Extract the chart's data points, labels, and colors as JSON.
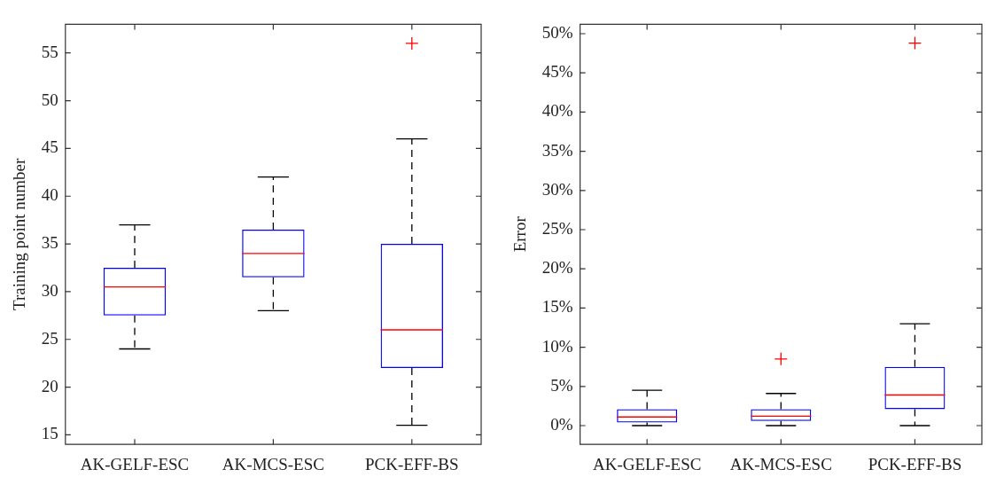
{
  "chart_data": [
    {
      "type": "box",
      "ylabel": "Training point number",
      "categories": [
        "AK-GELF-ESC",
        "AK-MCS-ESC",
        "PCK-EFF-BS"
      ],
      "ylim": [
        14,
        58
      ],
      "yticks": [
        15,
        20,
        25,
        30,
        35,
        40,
        45,
        50,
        55
      ],
      "grid": false,
      "marker": "cross",
      "series": [
        {
          "color": "#0000ff",
          "boxes": [
            {
              "low": 24,
              "q1": 27.5,
              "median": 30.5,
              "q3": 32.5,
              "high": 37
            },
            {
              "low": 28,
              "q1": 31.5,
              "median": 34,
              "q3": 36.5,
              "high": 42
            },
            {
              "low": 16,
              "q1": 22,
              "median": 26,
              "q3": 35,
              "high": 46,
              "outliers": [
                56
              ]
            }
          ]
        }
      ]
    },
    {
      "type": "box",
      "ylabel": "Error",
      "categories": [
        "AK-GELF-ESC",
        "AK-MCS-ESC",
        "PCK-EFF-BS"
      ],
      "ylim": [
        -2.4,
        51.2
      ],
      "yticks": [
        {
          "value": 0,
          "label": "0%"
        },
        {
          "value": 5,
          "label": "5%"
        },
        {
          "value": 10,
          "label": "10%"
        },
        {
          "value": 15,
          "label": "15%"
        },
        {
          "value": 20,
          "label": "20%"
        },
        {
          "value": 25,
          "label": "25%"
        },
        {
          "value": 30,
          "label": "30%"
        },
        {
          "value": 35,
          "label": "35%"
        },
        {
          "value": 40,
          "label": "40%"
        },
        {
          "value": 45,
          "label": "45%"
        },
        {
          "value": 50,
          "label": "50%"
        }
      ],
      "grid": false,
      "marker": "cross",
      "series": [
        {
          "color": "#0000ff",
          "boxes": [
            {
              "low": 0,
              "q1": 0.4,
              "median": 1.1,
              "q3": 2.1,
              "high": 4.5
            },
            {
              "low": 0,
              "q1": 0.6,
              "median": 1.2,
              "q3": 2.1,
              "high": 4.1,
              "outliers": [
                8.5
              ]
            },
            {
              "low": 0,
              "q1": 2.1,
              "median": 3.9,
              "q3": 7.5,
              "high": 13,
              "outliers": [
                48.8
              ]
            }
          ]
        }
      ]
    }
  ]
}
